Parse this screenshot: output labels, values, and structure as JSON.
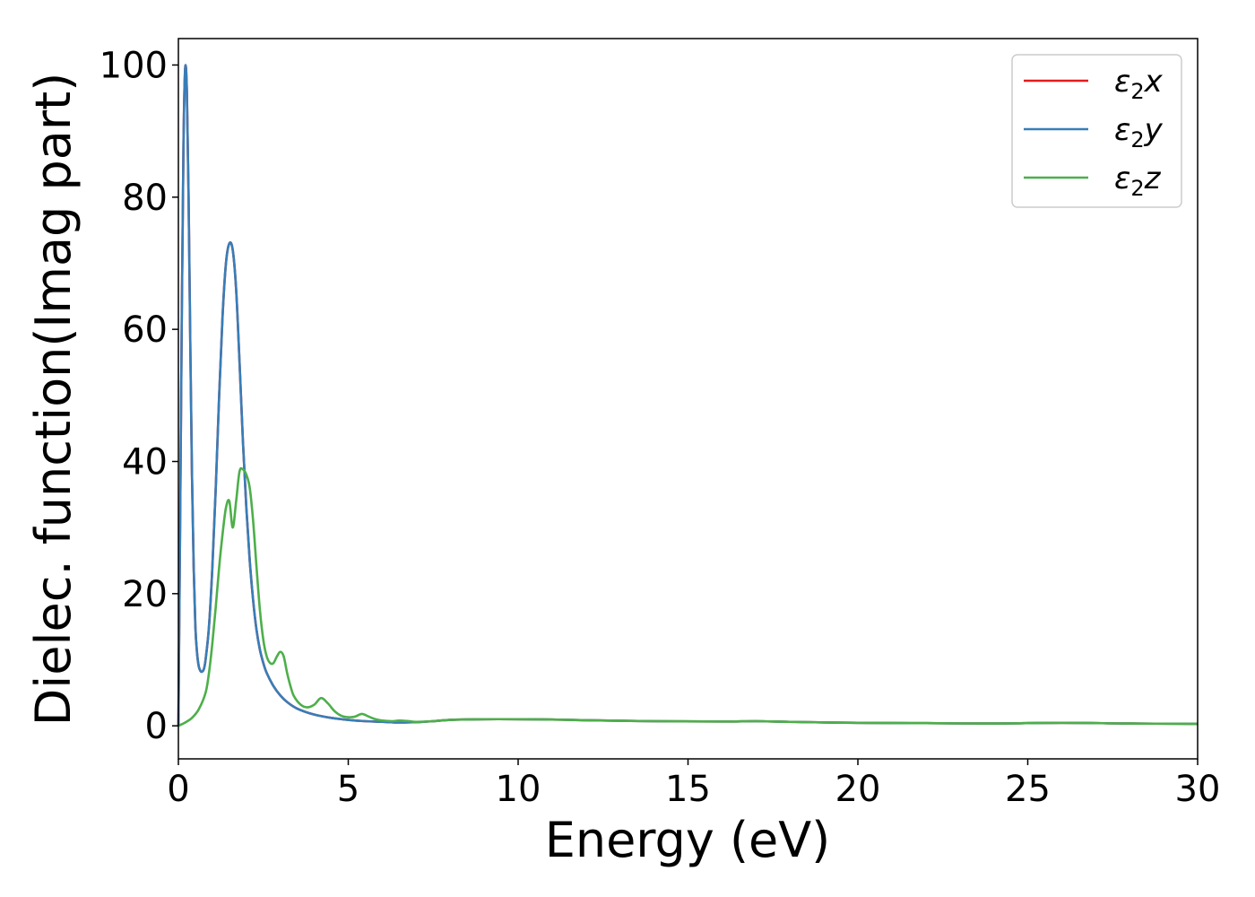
{
  "chart_data": {
    "type": "line",
    "xlabel": "Energy (eV)",
    "ylabel": "Dielec. function(Imag part)",
    "xlim": [
      0,
      30
    ],
    "ylim": [
      -5,
      104
    ],
    "xticks": [
      0,
      5,
      10,
      15,
      20,
      25,
      30
    ],
    "yticks": [
      0,
      20,
      40,
      60,
      80,
      100
    ],
    "grid": false,
    "legend_position": "top-right",
    "series": [
      {
        "name": "ε2x",
        "legend_base": "ε",
        "legend_sub": "2",
        "legend_suffix": "x",
        "color": "#e41a1c",
        "x": [
          0,
          0.05,
          0.1,
          0.15,
          0.2,
          0.25,
          0.3,
          0.35,
          0.4,
          0.45,
          0.5,
          0.55,
          0.6,
          0.65,
          0.7,
          0.75,
          0.8,
          0.9,
          1.0,
          1.1,
          1.2,
          1.3,
          1.4,
          1.5,
          1.6,
          1.7,
          1.8,
          1.9,
          2.0,
          2.1,
          2.2,
          2.3,
          2.4,
          2.5,
          2.6,
          2.8,
          3.0,
          3.2,
          3.5,
          4.0,
          4.5,
          5.0,
          5.5,
          6.0,
          6.5,
          7.0,
          7.5,
          8.0,
          9.0,
          10.0,
          11.0,
          12.0,
          14.0,
          16.0,
          17.0,
          18.0,
          20.0,
          22.0,
          24.0,
          26.0,
          28.0,
          30.0
        ],
        "y": [
          0,
          30,
          62,
          88,
          99.5,
          96,
          80,
          58,
          38,
          24,
          15,
          11,
          9,
          8.3,
          8.2,
          8.6,
          10,
          15,
          24,
          36,
          50,
          62,
          70,
          73,
          72,
          66,
          55,
          43,
          33,
          25,
          19,
          14.5,
          11.5,
          9.5,
          8,
          6,
          4.6,
          3.6,
          2.6,
          1.7,
          1.2,
          0.9,
          0.7,
          0.6,
          0.5,
          0.55,
          0.7,
          0.9,
          1.0,
          1.0,
          0.95,
          0.85,
          0.7,
          0.65,
          0.7,
          0.6,
          0.45,
          0.4,
          0.35,
          0.45,
          0.35,
          0.3
        ]
      },
      {
        "name": "ε2y",
        "legend_base": "ε",
        "legend_sub": "2",
        "legend_suffix": "y",
        "color": "#377eb8",
        "x": [
          0,
          0.05,
          0.1,
          0.15,
          0.2,
          0.25,
          0.3,
          0.35,
          0.4,
          0.45,
          0.5,
          0.55,
          0.6,
          0.65,
          0.7,
          0.75,
          0.8,
          0.9,
          1.0,
          1.1,
          1.2,
          1.3,
          1.4,
          1.5,
          1.6,
          1.7,
          1.8,
          1.9,
          2.0,
          2.1,
          2.2,
          2.3,
          2.4,
          2.5,
          2.6,
          2.8,
          3.0,
          3.2,
          3.5,
          4.0,
          4.5,
          5.0,
          5.5,
          6.0,
          6.5,
          7.0,
          7.5,
          8.0,
          9.0,
          10.0,
          11.0,
          12.0,
          14.0,
          16.0,
          17.0,
          18.0,
          20.0,
          22.0,
          24.0,
          26.0,
          28.0,
          30.0
        ],
        "y": [
          0,
          30,
          62,
          88,
          99.5,
          96,
          80,
          58,
          38,
          24,
          15,
          11,
          9,
          8.3,
          8.2,
          8.6,
          10,
          15,
          24,
          36,
          50,
          62,
          70,
          73,
          72,
          66,
          55,
          43,
          33,
          25,
          19,
          14.5,
          11.5,
          9.5,
          8,
          6,
          4.6,
          3.6,
          2.6,
          1.7,
          1.2,
          0.9,
          0.7,
          0.6,
          0.5,
          0.55,
          0.7,
          0.9,
          1.0,
          1.0,
          0.95,
          0.85,
          0.7,
          0.65,
          0.7,
          0.6,
          0.45,
          0.4,
          0.35,
          0.45,
          0.35,
          0.3
        ]
      },
      {
        "name": "ε2z",
        "legend_base": "ε",
        "legend_sub": "2",
        "legend_suffix": "z",
        "color": "#4daf4a",
        "x": [
          0,
          0.2,
          0.4,
          0.6,
          0.8,
          0.9,
          1.0,
          1.1,
          1.2,
          1.3,
          1.4,
          1.5,
          1.6,
          1.7,
          1.8,
          1.9,
          2.0,
          2.1,
          2.2,
          2.3,
          2.4,
          2.5,
          2.6,
          2.7,
          2.8,
          2.9,
          3.0,
          3.1,
          3.2,
          3.3,
          3.4,
          3.6,
          3.8,
          4.0,
          4.2,
          4.4,
          4.6,
          4.8,
          5.0,
          5.2,
          5.4,
          5.6,
          5.8,
          6.0,
          6.3,
          6.5,
          6.8,
          7.0,
          7.5,
          8.0,
          9.0,
          10.0,
          11.0,
          12.0,
          14.0,
          16.0,
          17.0,
          18.0,
          20.0,
          22.0,
          24.0,
          26.0,
          28.0,
          30.0
        ],
        "y": [
          0,
          0.5,
          1.2,
          2.5,
          5,
          8,
          12.5,
          18,
          24,
          29,
          33,
          34,
          30,
          34,
          38.5,
          38.8,
          38,
          36,
          31,
          24,
          17.5,
          13,
          10.5,
          9.5,
          9.5,
          10.5,
          11.2,
          10.5,
          8,
          6,
          4.5,
          3.2,
          2.8,
          3.2,
          4.2,
          3.4,
          2.2,
          1.5,
          1.3,
          1.4,
          1.8,
          1.4,
          1.0,
          0.8,
          0.7,
          0.8,
          0.7,
          0.6,
          0.7,
          0.9,
          1.0,
          1.0,
          0.95,
          0.85,
          0.7,
          0.65,
          0.7,
          0.6,
          0.45,
          0.4,
          0.35,
          0.45,
          0.35,
          0.3
        ]
      }
    ]
  }
}
